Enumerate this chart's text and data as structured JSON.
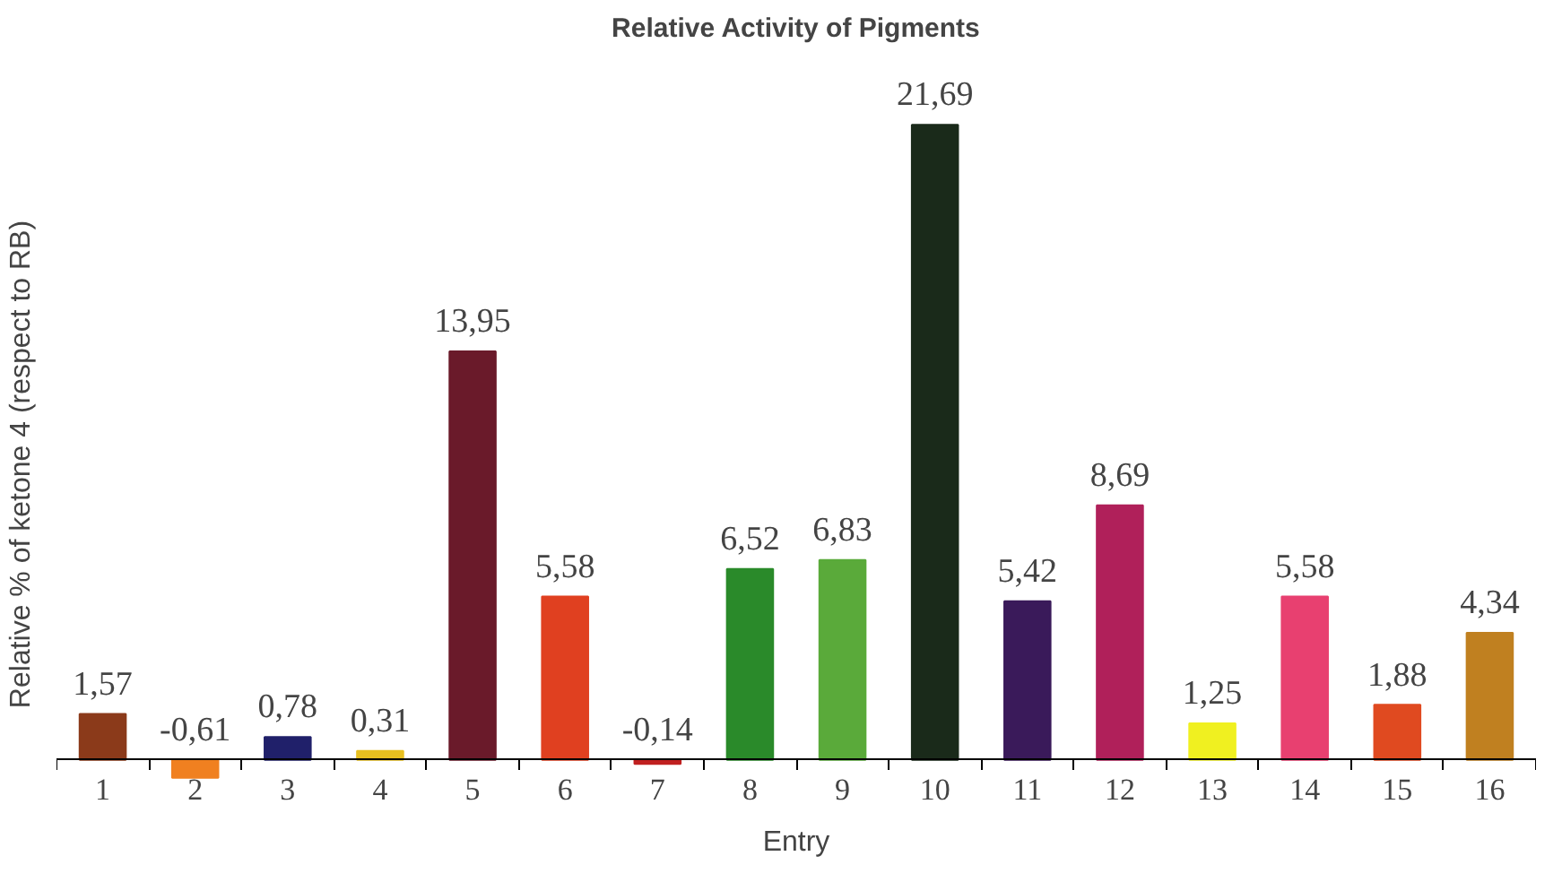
{
  "chart_data": {
    "type": "bar",
    "title": "Relative Activity of Pigments",
    "xlabel": "Entry",
    "ylabel": "Relative % of ketone 4 (respect to RB)",
    "categories": [
      "1",
      "2",
      "3",
      "4",
      "5",
      "6",
      "7",
      "8",
      "9",
      "10",
      "11",
      "12",
      "13",
      "14",
      "15",
      "16"
    ],
    "values": [
      1.57,
      -0.61,
      0.78,
      0.31,
      13.95,
      5.58,
      -0.14,
      6.52,
      6.83,
      21.69,
      5.42,
      8.69,
      1.25,
      5.58,
      1.88,
      4.34
    ],
    "colors": [
      "#8b3a1a",
      "#f08020",
      "#20206a",
      "#e8c020",
      "#6a1a2a",
      "#e04020",
      "#c02020",
      "#2a8a2a",
      "#5aaa3a",
      "#1a2a1a",
      "#3a1a5a",
      "#b0205a",
      "#f0f020",
      "#e84070",
      "#e04a20",
      "#c08020"
    ],
    "value_labels": [
      "1,57",
      "-0,61",
      "0,78",
      "0,31",
      "13,95",
      "5,58",
      "-0,14",
      "6,52",
      "6,83",
      "21,69",
      "5,42",
      "8,69",
      "1,25",
      "5,58",
      "1,88",
      "4,34"
    ],
    "grid": false,
    "legend": false
  }
}
